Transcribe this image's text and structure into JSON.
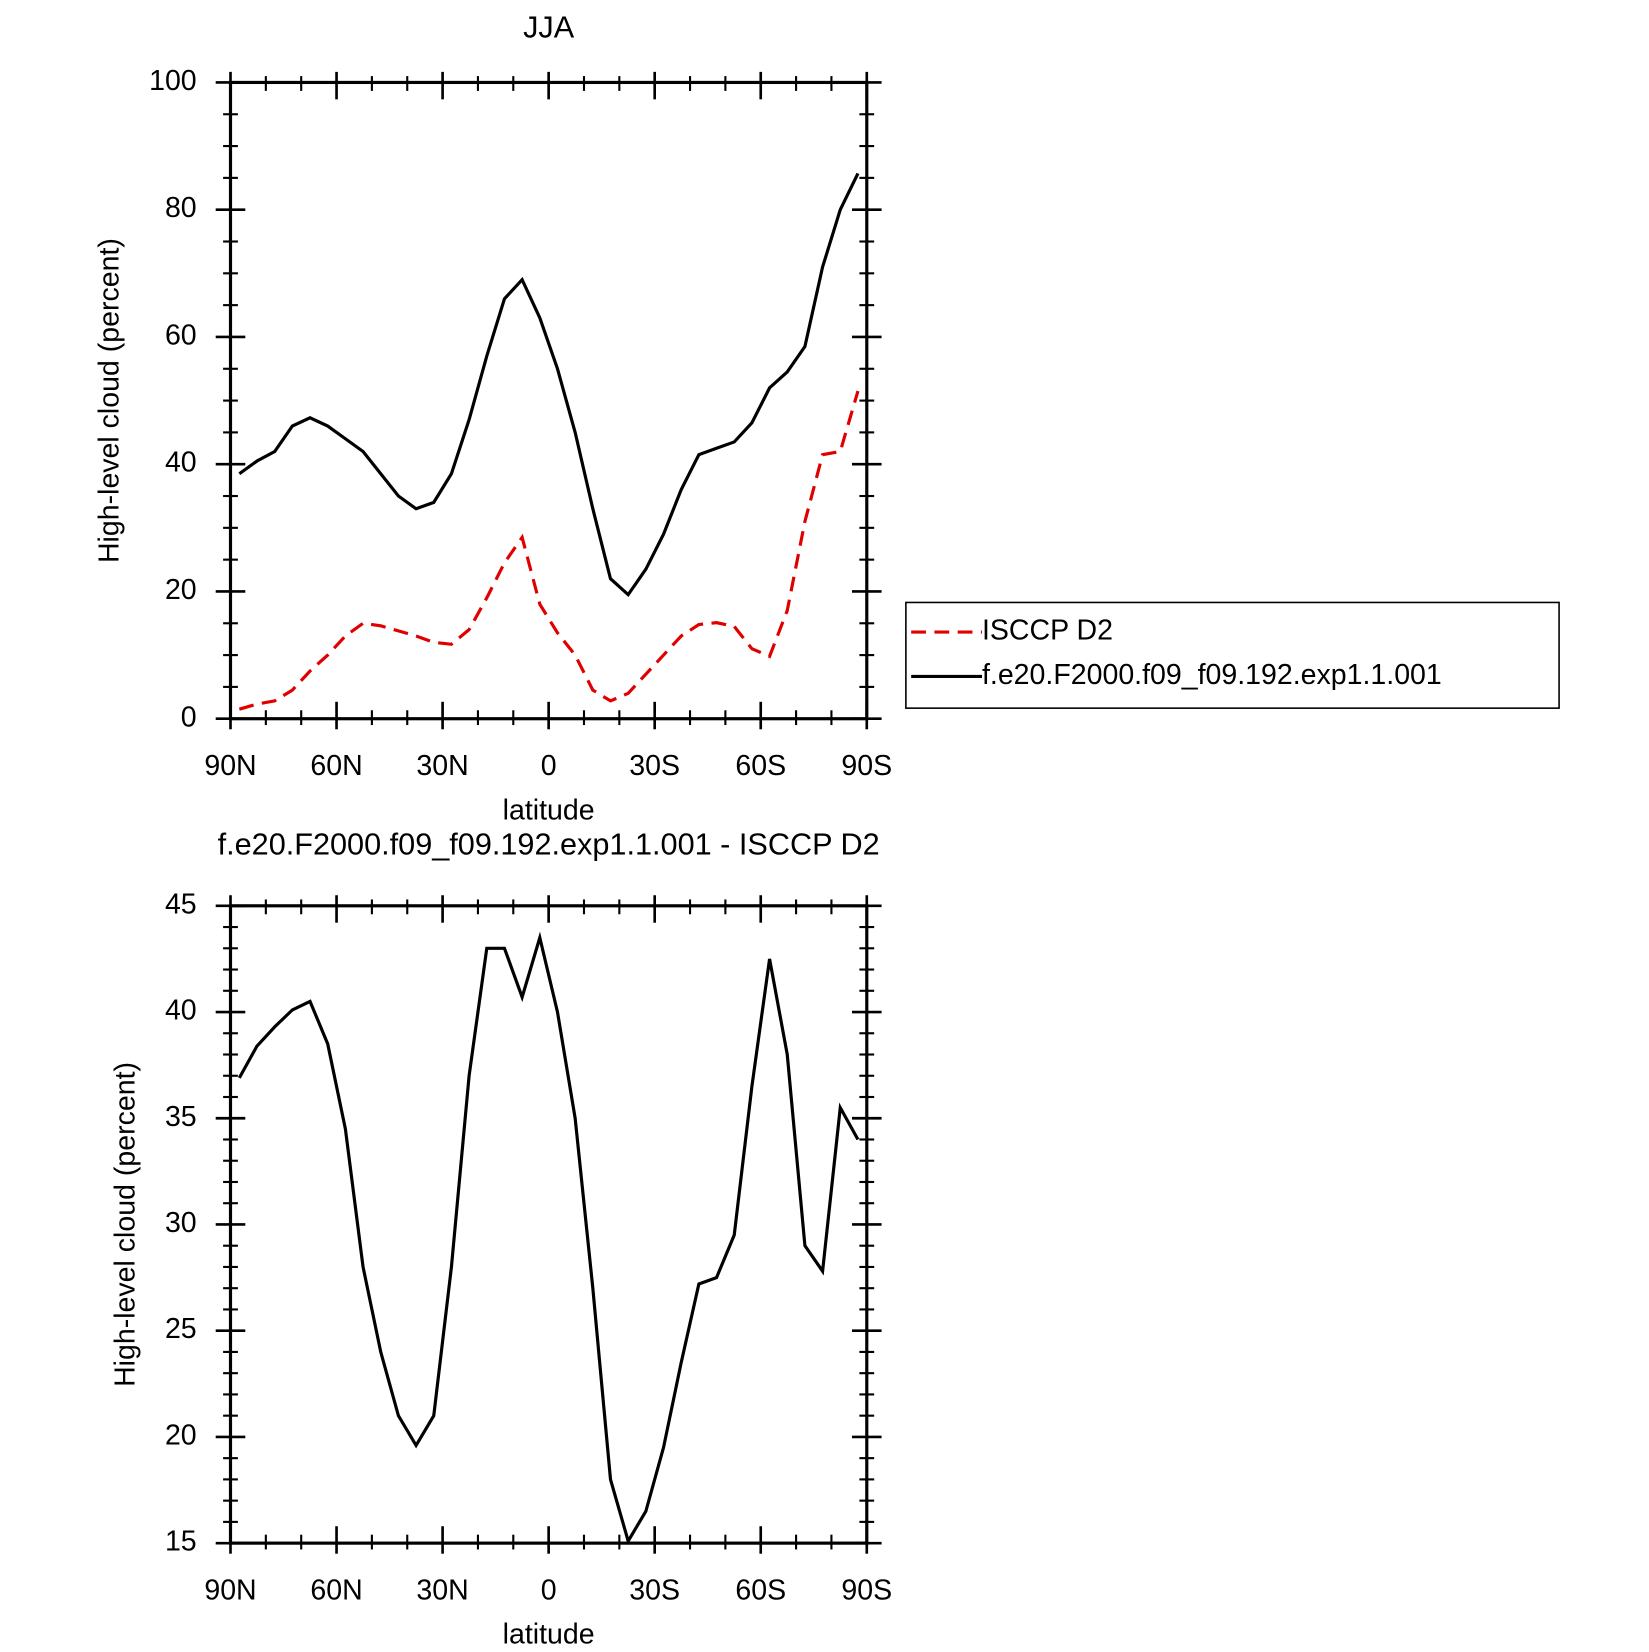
{
  "chart_data": [
    {
      "type": "line",
      "title": "JJA",
      "xlabel": "latitude",
      "ylabel": "High-level cloud (percent)",
      "x": [
        87.5,
        82.5,
        77.5,
        72.5,
        67.5,
        62.5,
        57.5,
        52.5,
        47.5,
        42.5,
        37.5,
        32.5,
        27.5,
        22.5,
        17.5,
        12.5,
        7.5,
        2.5,
        -2.5,
        -7.5,
        -12.5,
        -17.5,
        -22.5,
        -27.5,
        -32.5,
        -37.5,
        -42.5,
        -47.5,
        -52.5,
        -57.5,
        -62.5,
        -67.5,
        -72.5,
        -77.5,
        -82.5,
        -87.5
      ],
      "series": [
        {
          "name": "ISCCP D2",
          "color": "#e00000",
          "linestyle": "dashed",
          "values": [
            1.5,
            2.3,
            2.8,
            4.5,
            7.5,
            10,
            13,
            15,
            14.6,
            13.8,
            13,
            12,
            11.7,
            14,
            19,
            24.5,
            28.5,
            18,
            13.5,
            10,
            4.5,
            2.8,
            4,
            7,
            10,
            13,
            14.8,
            15.1,
            14.5,
            11,
            9.8,
            17,
            31,
            41.5,
            42,
            51.5
          ]
        },
        {
          "name": "f.e20.F2000.f09_f09.192.exp1.1.001",
          "color": "#000000",
          "linestyle": "solid",
          "values": [
            38.5,
            40.5,
            42,
            46,
            47.3,
            46,
            44,
            42,
            38.5,
            35,
            33,
            34,
            38.5,
            47,
            57,
            66,
            69,
            63,
            55,
            45,
            33,
            22,
            19.5,
            23.5,
            29,
            36,
            41.5,
            42.5,
            43.5,
            46.5,
            52,
            54.5,
            58.5,
            71,
            80,
            85.7
          ]
        }
      ],
      "xlim": [
        90,
        -90
      ],
      "xticks": [
        {
          "value": 90,
          "label": "90N"
        },
        {
          "value": 60,
          "label": "60N"
        },
        {
          "value": 30,
          "label": "30N"
        },
        0,
        {
          "value": -30,
          "label": "30S"
        },
        {
          "value": -60,
          "label": "60S"
        },
        {
          "value": -90,
          "label": "90S"
        }
      ],
      "ylim": [
        0,
        100
      ],
      "yticks": [
        0,
        20,
        40,
        60,
        80,
        100
      ],
      "legend": "right"
    },
    {
      "type": "line",
      "title": "f.e20.F2000.f09_f09.192.exp1.1.001 - ISCCP D2",
      "xlabel": "latitude",
      "ylabel": "High-level cloud (percent)",
      "x": [
        87.5,
        82.5,
        77.5,
        72.5,
        67.5,
        62.5,
        57.5,
        52.5,
        47.5,
        42.5,
        37.5,
        32.5,
        27.5,
        22.5,
        17.5,
        12.5,
        7.5,
        2.5,
        -2.5,
        -7.5,
        -12.5,
        -17.5,
        -22.5,
        -27.5,
        -32.5,
        -37.5,
        -42.5,
        -47.5,
        -52.5,
        -57.5,
        -62.5,
        -67.5,
        -72.5,
        -77.5,
        -82.5,
        -87.5
      ],
      "series": [
        {
          "color": "#000000",
          "linestyle": "solid",
          "values": [
            36.9,
            38.4,
            39.3,
            40.1,
            40.5,
            38.5,
            34.5,
            28,
            24,
            21,
            19.6,
            21,
            28,
            37,
            43,
            43,
            40.7,
            43.5,
            40,
            35,
            27,
            18,
            15.1,
            16.5,
            19.5,
            23.5,
            27.2,
            27.5,
            29.5,
            36.5,
            42.5,
            38,
            29,
            27.8,
            35.5,
            34
          ]
        }
      ],
      "xlim": [
        90,
        -90
      ],
      "xticks": [
        {
          "value": 90,
          "label": "90N"
        },
        {
          "value": 60,
          "label": "60N"
        },
        {
          "value": 30,
          "label": "30N"
        },
        0,
        {
          "value": -30,
          "label": "30S"
        },
        {
          "value": -60,
          "label": "60S"
        },
        {
          "value": -90,
          "label": "90S"
        }
      ],
      "ylim": [
        15,
        45
      ],
      "yticks": [
        15,
        20,
        25,
        30,
        35,
        40,
        45
      ]
    }
  ]
}
